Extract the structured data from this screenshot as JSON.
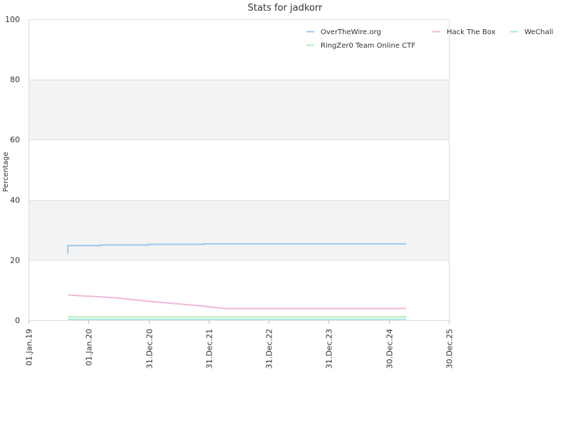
{
  "chart_data": {
    "type": "line",
    "title": "Stats for jadkorr",
    "xlabel": "",
    "ylabel": "Percentage",
    "ylim": [
      0,
      100
    ],
    "xlim": [
      "2019-01-01",
      "2025-12-30"
    ],
    "y_ticks": [
      0,
      20,
      40,
      60,
      80,
      100
    ],
    "x_ticks": [
      {
        "date": "2019-01-01",
        "label": "01.Jan.19"
      },
      {
        "date": "2020-01-01",
        "label": "01.Jan.20"
      },
      {
        "date": "2020-12-31",
        "label": "31.Dec.20"
      },
      {
        "date": "2021-12-31",
        "label": "31.Dec.21"
      },
      {
        "date": "2022-12-31",
        "label": "31.Dec.22"
      },
      {
        "date": "2023-12-31",
        "label": "31.Dec.23"
      },
      {
        "date": "2024-12-30",
        "label": "30.Dec.24"
      },
      {
        "date": "2025-12-30",
        "label": "30.Dec.25"
      }
    ],
    "grid": true,
    "alternating_bands": true,
    "band_color": "#f3f3f3",
    "legend_position": "top-right",
    "series": [
      {
        "name": "OverTheWire.org",
        "color": "#9ec8f0",
        "points": [
          [
            "2019-08-28",
            22.0
          ],
          [
            "2019-08-28",
            24.8
          ],
          [
            "2020-03-15",
            24.8
          ],
          [
            "2020-03-15",
            25.0
          ],
          [
            "2021-01-01",
            25.0
          ],
          [
            "2021-01-01",
            25.2
          ],
          [
            "2021-12-01",
            25.2
          ],
          [
            "2021-12-01",
            25.4
          ],
          [
            "2025-04-15",
            25.4
          ]
        ]
      },
      {
        "name": "Hack The Box",
        "color": "#f0b8d8",
        "points": [
          [
            "2019-08-28",
            8.4
          ],
          [
            "2020-06-01",
            7.5
          ],
          [
            "2021-01-01",
            6.3
          ],
          [
            "2021-12-01",
            4.7
          ],
          [
            "2022-04-01",
            3.9
          ],
          [
            "2025-04-15",
            3.9
          ]
        ]
      },
      {
        "name": "WeChall",
        "color": "#9ee6d6",
        "points": [
          [
            "2019-08-28",
            0.3
          ],
          [
            "2025-04-15",
            0.3
          ]
        ]
      },
      {
        "name": "RingZer0 Team Online CTF",
        "color": "#b4eeb4",
        "points": [
          [
            "2019-08-28",
            1.1
          ],
          [
            "2025-04-15",
            1.1
          ]
        ]
      }
    ]
  }
}
